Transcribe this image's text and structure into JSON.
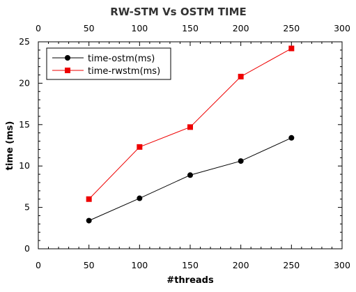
{
  "chart_data": {
    "type": "line",
    "title": "RW-STM Vs OSTM TIME",
    "xlabel": "#threads",
    "ylabel": "time (ms)",
    "xlim": [
      0,
      300
    ],
    "ylim": [
      0,
      25
    ],
    "xticks": [
      0,
      50,
      100,
      150,
      200,
      250,
      300
    ],
    "yticks": [
      0,
      5,
      10,
      15,
      20,
      25
    ],
    "top_axis_ticks": true,
    "grid": false,
    "legend_position": "top-left",
    "series": [
      {
        "name": "time-ostm(ms)",
        "color": "#000000",
        "marker": "circle",
        "x": [
          50,
          100,
          150,
          200,
          250
        ],
        "y": [
          3.4,
          6.1,
          8.9,
          10.6,
          13.4
        ]
      },
      {
        "name": "time-rwstm(ms)",
        "color": "#ee0000",
        "marker": "square",
        "x": [
          50,
          100,
          150,
          200,
          250
        ],
        "y": [
          6.0,
          12.3,
          14.7,
          20.8,
          24.2
        ]
      }
    ]
  }
}
